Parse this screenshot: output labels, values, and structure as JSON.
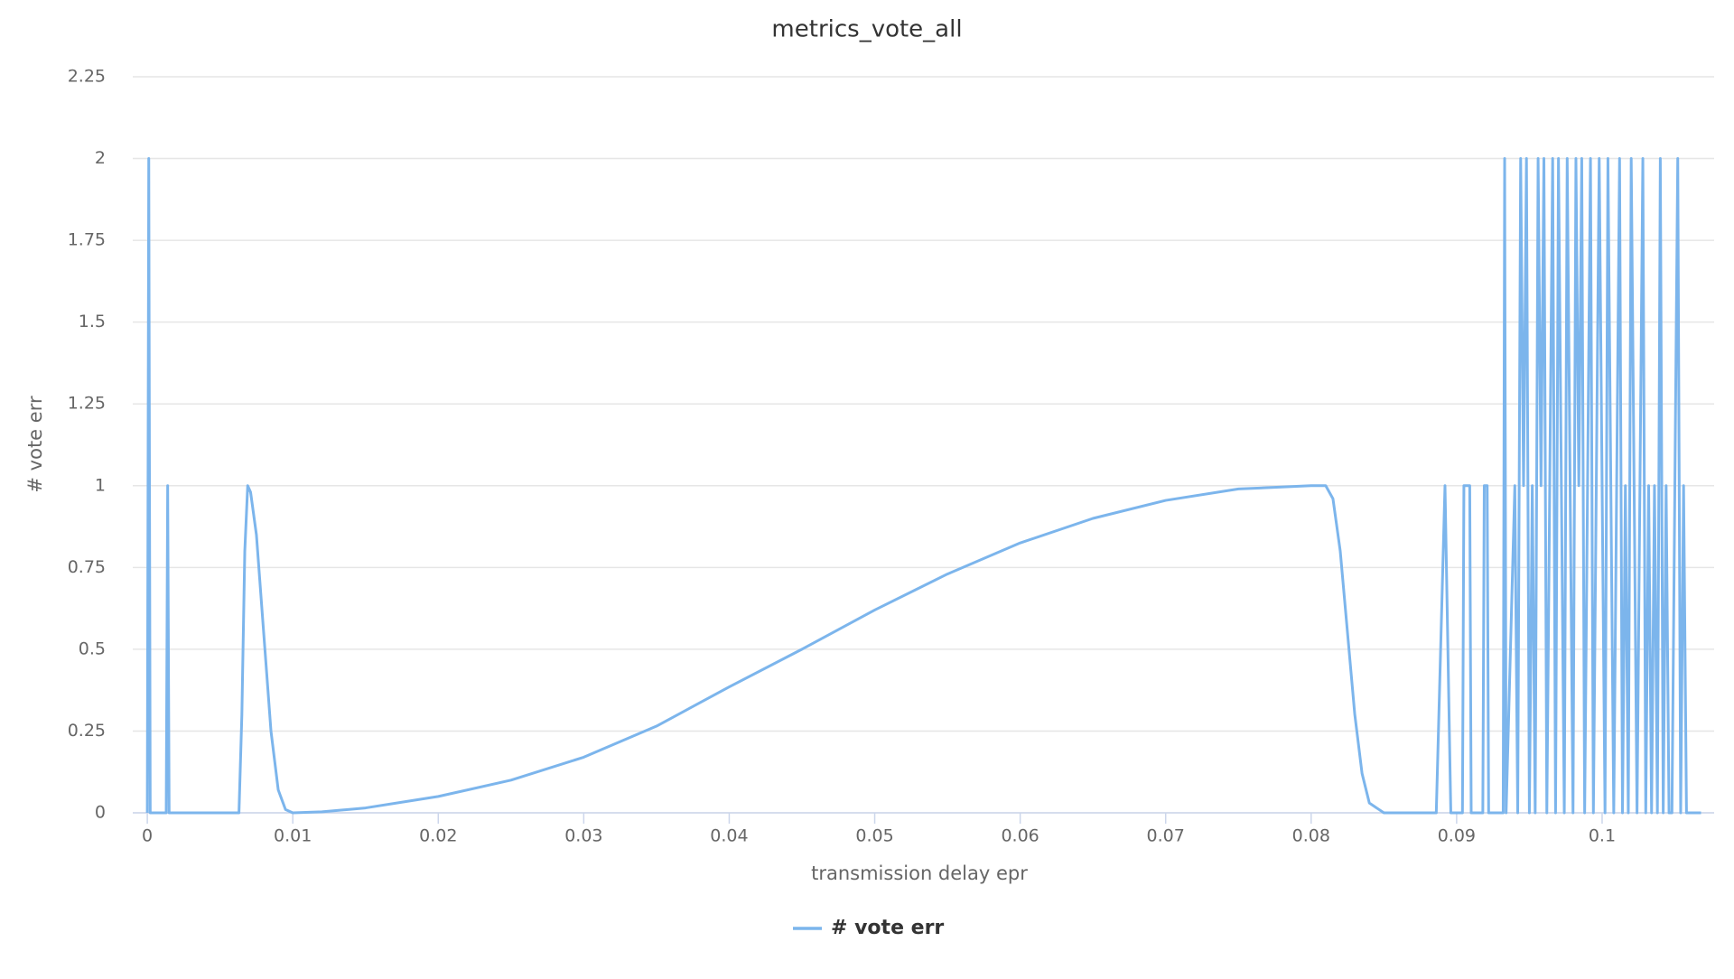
{
  "chart_data": {
    "type": "line",
    "title": "metrics_vote_all",
    "x_label": "transmission delay epr",
    "y_label": "# vote err",
    "x": [
      0,
      0.0001,
      0.0002,
      0.0013,
      0.0014,
      0.0015,
      0.0063,
      0.0065,
      0.0067,
      0.0069,
      0.0071,
      0.0075,
      0.008,
      0.0085,
      0.009,
      0.0095,
      0.01,
      0.012,
      0.015,
      0.02,
      0.025,
      0.03,
      0.035,
      0.04,
      0.045,
      0.05,
      0.055,
      0.06,
      0.065,
      0.07,
      0.075,
      0.08,
      0.081,
      0.0815,
      0.082,
      0.0825,
      0.083,
      0.0835,
      0.084,
      0.085,
      0.0886,
      0.0889,
      0.0892,
      0.0894,
      0.0896,
      0.0904,
      0.0905,
      0.0909,
      0.091,
      0.0918,
      0.0919,
      0.0921,
      0.0922,
      0.0932,
      0.0933,
      0.0934,
      0.094,
      0.0942,
      0.0944,
      0.0946,
      0.0948,
      0.095,
      0.0952,
      0.0954,
      0.0956,
      0.0958,
      0.096,
      0.0962,
      0.0964,
      0.0966,
      0.0968,
      0.097,
      0.0972,
      0.0974,
      0.0976,
      0.0978,
      0.098,
      0.0982,
      0.0984,
      0.0986,
      0.0988,
      0.099,
      0.0992,
      0.0994,
      0.0996,
      0.0998,
      0.1,
      0.1002,
      0.1004,
      0.1006,
      0.1008,
      0.101,
      0.1012,
      0.1014,
      0.1016,
      0.1018,
      0.102,
      0.1022,
      0.1024,
      0.1026,
      0.1028,
      0.103,
      0.1032,
      0.1034,
      0.1036,
      0.1038,
      0.104,
      0.1042,
      0.1044,
      0.1046,
      0.1048,
      0.105,
      0.1052,
      0.1054,
      0.1056,
      0.1058,
      0.106,
      0.1062,
      0.1068
    ],
    "series": [
      {
        "name": "# vote err",
        "color": "#7cb5ec",
        "values": [
          0,
          2,
          0,
          0,
          1,
          0,
          0,
          0.3,
          0.8,
          1,
          0.98,
          0.85,
          0.55,
          0.25,
          0.07,
          0.01,
          0,
          0.003,
          0.015,
          0.05,
          0.1,
          0.17,
          0.265,
          0.385,
          0.5,
          0.62,
          0.73,
          0.825,
          0.9,
          0.955,
          0.99,
          1,
          1,
          0.96,
          0.8,
          0.55,
          0.3,
          0.12,
          0.03,
          0,
          0,
          0.5,
          1,
          0.5,
          0,
          0,
          1,
          1,
          0,
          0,
          1,
          1,
          0,
          0,
          2,
          0,
          1,
          0,
          2,
          1,
          2,
          0,
          1,
          0,
          2,
          1,
          2,
          0,
          1,
          2,
          0,
          2,
          1,
          0,
          2,
          1,
          0,
          2,
          1,
          2,
          0,
          1,
          2,
          0,
          1,
          2,
          1,
          0,
          2,
          1,
          0,
          1,
          2,
          0,
          1,
          0,
          2,
          1,
          0,
          1,
          2,
          0,
          1,
          0,
          1,
          0,
          2,
          0,
          1,
          0,
          0,
          1,
          2,
          0,
          1,
          0,
          0,
          0,
          0
        ]
      }
    ],
    "xlim": [
      -0.001,
      0.1077
    ],
    "xticks": [
      0,
      0.01,
      0.02,
      0.03,
      0.04,
      0.05,
      0.06,
      0.07,
      0.08,
      0.09,
      0.1
    ],
    "ylim": [
      0,
      2.25
    ],
    "yticks": [
      0,
      0.25,
      0.5,
      0.75,
      1,
      1.25,
      1.5,
      1.75,
      2,
      2.25
    ],
    "grid": true
  }
}
